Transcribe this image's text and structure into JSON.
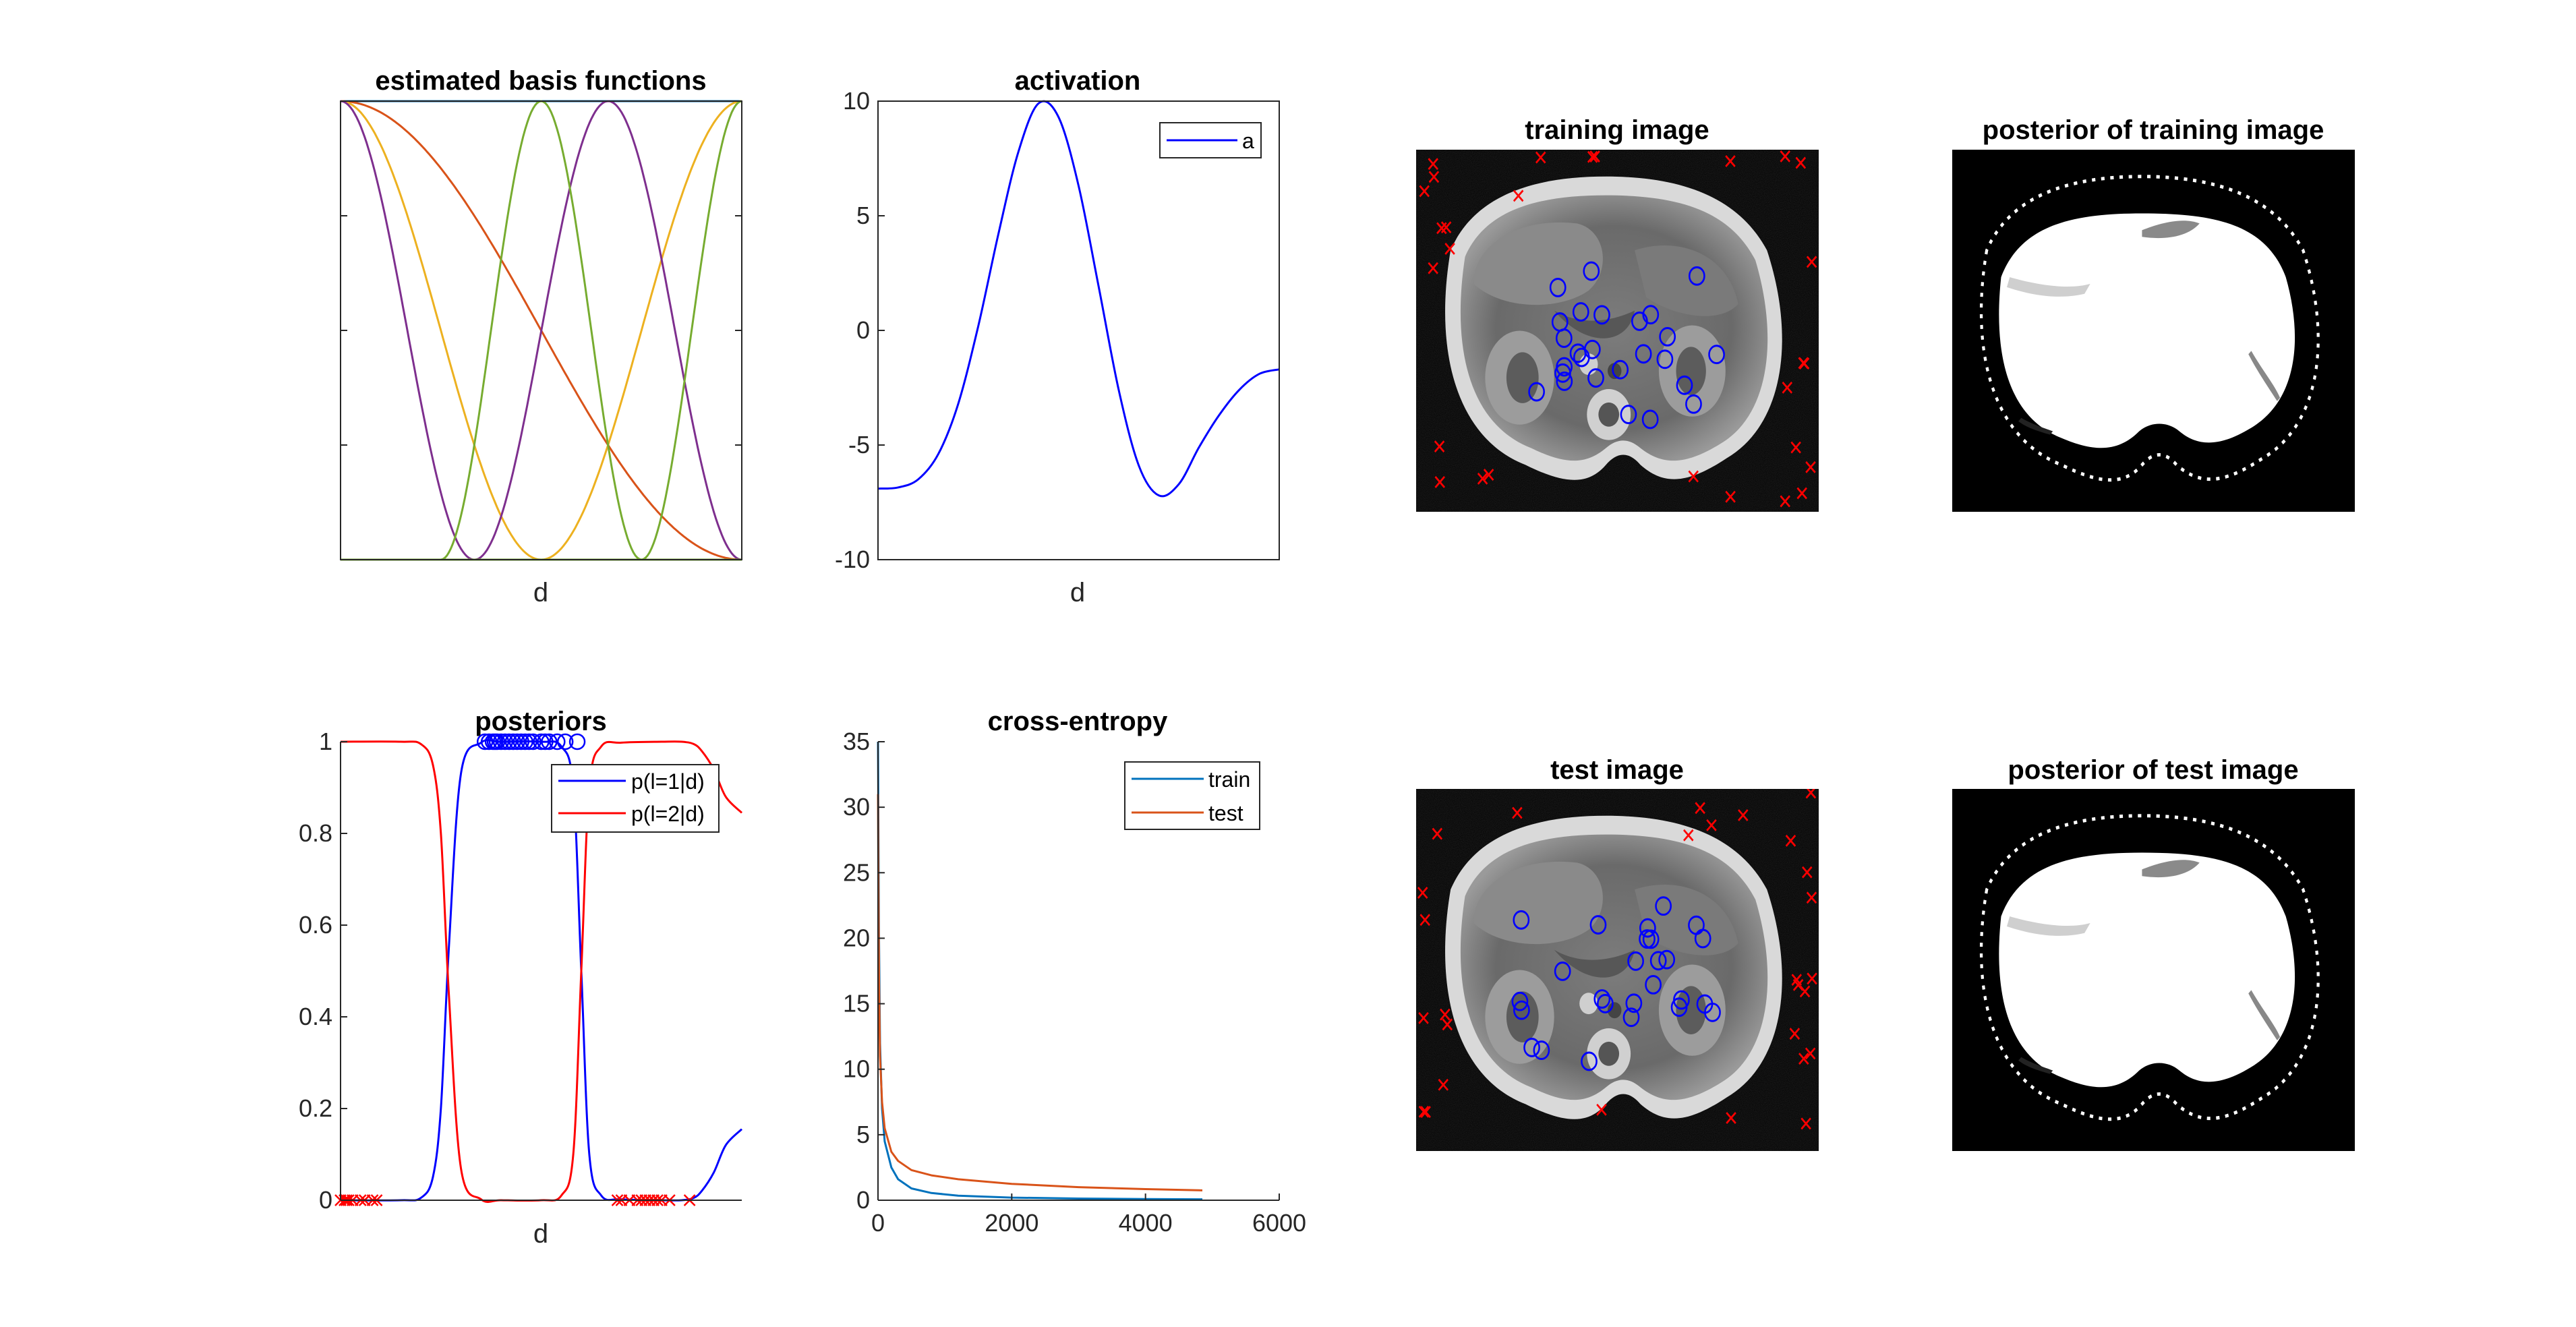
{
  "colors": {
    "axis": "#262626",
    "blue": "#0000ff",
    "red": "#ff0000",
    "matlab_blue": "#0072bd",
    "matlab_orange": "#d95319",
    "matlab_yellow": "#edb120",
    "matlab_purple": "#7e2f8e",
    "matlab_green": "#77ac30"
  },
  "chart_data": [
    {
      "id": "basis",
      "type": "line",
      "title": "estimated basis functions",
      "xlabel": "d",
      "ylabel": "",
      "xlim": [
        0,
        1
      ],
      "ylim": [
        0,
        1
      ],
      "x_ticks": [],
      "y_ticks": [],
      "grid": false,
      "series": [
        {
          "color": "#0072bd",
          "kind": "const",
          "value": 1
        },
        {
          "color": "#d95319",
          "kind": "cos_bump",
          "center": 0.0,
          "halfwidth": 1.0
        },
        {
          "color": "#edb120",
          "kind": "cos_bump",
          "center": 0.0,
          "halfwidth": 0.5
        },
        {
          "color": "#edb120",
          "kind": "cos_bump",
          "center": 1.0,
          "halfwidth": 0.5
        },
        {
          "color": "#7e2f8e",
          "kind": "cos_bump",
          "center": 0.0,
          "halfwidth": 0.333
        },
        {
          "color": "#7e2f8e",
          "kind": "cos_bump",
          "center": 0.667,
          "halfwidth": 0.333
        },
        {
          "color": "#77ac30",
          "kind": "cos_bump",
          "center": 0.5,
          "halfwidth": 0.25
        },
        {
          "color": "#77ac30",
          "kind": "cos_bump",
          "center": 1.0,
          "halfwidth": 0.25
        }
      ]
    },
    {
      "id": "activation",
      "type": "line",
      "title": "activation",
      "xlabel": "d",
      "ylabel": "",
      "xlim": [
        0,
        1
      ],
      "ylim": [
        -10,
        10
      ],
      "x_ticks": [],
      "y_ticks": [
        -10,
        -5,
        0,
        5,
        10
      ],
      "y_tick_labels": [
        "-10",
        "-5",
        "0",
        "5",
        "10"
      ],
      "grid": false,
      "legend": {
        "position": "top-right",
        "entries": [
          {
            "name": "a",
            "color": "#0000ff"
          }
        ]
      },
      "series": [
        {
          "name": "a",
          "color": "#0000ff",
          "x": [
            0,
            0.05,
            0.1,
            0.15,
            0.2,
            0.25,
            0.3,
            0.35,
            0.4,
            0.45,
            0.5,
            0.55,
            0.6,
            0.65,
            0.7,
            0.75,
            0.8,
            0.85,
            0.9,
            0.95,
            1.0
          ],
          "y": [
            -6.9,
            -6.85,
            -6.5,
            -5.4,
            -3.2,
            0.2,
            4.2,
            7.8,
            9.9,
            9.3,
            6.3,
            1.9,
            -2.6,
            -5.9,
            -7.2,
            -6.7,
            -5.1,
            -3.7,
            -2.6,
            -1.9,
            -1.7
          ]
        }
      ]
    },
    {
      "id": "posteriors",
      "type": "line",
      "title": "posteriors",
      "xlabel": "d",
      "ylabel": "",
      "xlim": [
        0,
        1
      ],
      "ylim": [
        0,
        1
      ],
      "x_ticks": [],
      "y_ticks": [
        0,
        0.2,
        0.4,
        0.6,
        0.8,
        1
      ],
      "y_tick_labels": [
        "0",
        "0.2",
        "0.4",
        "0.6",
        "0.8",
        "1"
      ],
      "grid": false,
      "legend": {
        "position": "top-right",
        "entries": [
          {
            "name": "p(l=1|d)",
            "color": "#0000ff"
          },
          {
            "name": "p(l=2|d)",
            "color": "#ff0000"
          }
        ]
      },
      "series": [
        {
          "name": "p(l=1|d)",
          "color": "#0000ff",
          "x": [
            0,
            0.15,
            0.2,
            0.23,
            0.25,
            0.27,
            0.3,
            0.35,
            0.4,
            0.5,
            0.55,
            0.58,
            0.6,
            0.62,
            0.65,
            0.7,
            0.8,
            0.85,
            0.88,
            0.9,
            0.93,
            0.96,
            1.0
          ],
          "y": [
            0,
            0,
            0.005,
            0.05,
            0.2,
            0.55,
            0.93,
            0.998,
            1.0,
            1.0,
            0.99,
            0.9,
            0.5,
            0.1,
            0.01,
            0.002,
            0.0,
            0.0,
            0.005,
            0.02,
            0.06,
            0.12,
            0.155
          ]
        },
        {
          "name": "p(l=2|d)",
          "color": "#ff0000",
          "x": [
            0,
            0.15,
            0.2,
            0.23,
            0.25,
            0.27,
            0.3,
            0.35,
            0.4,
            0.5,
            0.55,
            0.58,
            0.6,
            0.62,
            0.65,
            0.7,
            0.8,
            0.85,
            0.88,
            0.9,
            0.93,
            0.96,
            1.0
          ],
          "y": [
            1,
            1,
            0.995,
            0.95,
            0.8,
            0.45,
            0.07,
            0.002,
            0.0,
            0.0,
            0.01,
            0.1,
            0.5,
            0.9,
            0.99,
            0.998,
            1.0,
            1.0,
            0.995,
            0.98,
            0.94,
            0.88,
            0.845
          ]
        }
      ],
      "markers": [
        {
          "name": "class 1 samples",
          "symbol": "circle",
          "color": "#0000ff",
          "y": 1,
          "x": [
            0.36,
            0.37,
            0.38,
            0.385,
            0.39,
            0.4,
            0.41,
            0.42,
            0.43,
            0.44,
            0.45,
            0.46,
            0.47,
            0.48,
            0.5,
            0.51,
            0.52,
            0.54,
            0.56,
            0.59
          ]
        },
        {
          "name": "class 2 samples",
          "symbol": "x",
          "color": "#ff0000",
          "y": 0,
          "x": [
            0.0,
            0.01,
            0.015,
            0.02,
            0.03,
            0.05,
            0.06,
            0.08,
            0.09,
            0.69,
            0.7,
            0.72,
            0.74,
            0.75,
            0.76,
            0.77,
            0.78,
            0.79,
            0.8,
            0.82,
            0.87
          ]
        }
      ]
    },
    {
      "id": "cross_entropy",
      "type": "line",
      "title": "cross-entropy",
      "xlabel": "",
      "ylabel": "",
      "xlim": [
        0,
        6000
      ],
      "ylim": [
        0,
        35
      ],
      "x_ticks": [
        0,
        2000,
        4000,
        6000
      ],
      "x_tick_labels": [
        "0",
        "2000",
        "4000",
        "6000"
      ],
      "y_ticks": [
        0,
        5,
        10,
        15,
        20,
        25,
        30,
        35
      ],
      "y_tick_labels": [
        "0",
        "5",
        "10",
        "15",
        "20",
        "25",
        "30",
        "35"
      ],
      "grid": false,
      "legend": {
        "position": "top-right",
        "entries": [
          {
            "name": "train",
            "color": "#0072bd"
          },
          {
            "name": "test",
            "color": "#d95319"
          }
        ]
      },
      "series": [
        {
          "name": "train",
          "color": "#0072bd",
          "x": [
            0,
            5,
            15,
            30,
            60,
            100,
            200,
            300,
            500,
            800,
            1200,
            2000,
            3000,
            4000,
            4850
          ],
          "y": [
            35,
            30,
            20,
            12,
            7,
            4.5,
            2.5,
            1.6,
            0.9,
            0.55,
            0.35,
            0.2,
            0.13,
            0.09,
            0.07
          ]
        },
        {
          "name": "test",
          "color": "#d95319",
          "x": [
            0,
            5,
            15,
            30,
            60,
            100,
            200,
            300,
            500,
            800,
            1200,
            2000,
            3000,
            4000,
            4850
          ],
          "y": [
            31,
            25,
            17,
            11,
            7.5,
            5.5,
            3.7,
            3.0,
            2.3,
            1.9,
            1.6,
            1.25,
            1.0,
            0.85,
            0.75
          ]
        }
      ]
    }
  ],
  "images": [
    {
      "id": "training-image",
      "title": "training image"
    },
    {
      "id": "posterior-training",
      "title": "posterior of training image"
    },
    {
      "id": "test-image",
      "title": "test image"
    },
    {
      "id": "posterior-test",
      "title": "posterior of test image"
    }
  ]
}
